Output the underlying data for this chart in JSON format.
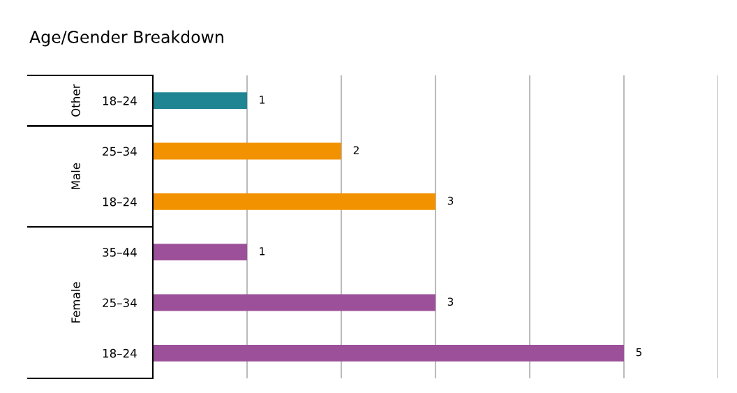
{
  "chart_data": {
    "type": "bar",
    "orientation": "horizontal",
    "title": "Age/Gender Breakdown",
    "categories": [
      "18–24",
      "25–34",
      "18–24",
      "35–44",
      "25–34",
      "18–24"
    ],
    "series": [
      {
        "color": "#1f8593",
        "values": [
          1,
          null,
          null,
          null,
          null,
          null
        ]
      },
      {
        "color": "#f39200",
        "values": [
          null,
          2,
          3,
          null,
          null,
          null
        ]
      },
      {
        "color": "#9c5099",
        "values": [
          null,
          null,
          null,
          1,
          3,
          5
        ]
      }
    ],
    "annotations": [
      "Other",
      "Male",
      "Female"
    ],
    "xlim": [
      0,
      6
    ],
    "xticks": [
      {
        "value": 1,
        "label": null
      },
      {
        "value": 2,
        "label": null
      },
      {
        "value": 3,
        "label": null
      },
      {
        "value": 4,
        "label": null
      },
      {
        "value": 5,
        "label": null
      },
      {
        "value": 6,
        "label": null
      }
    ],
    "grid": "x",
    "data_labels": true,
    "tick_labels": "y",
    "legend": false
  }
}
